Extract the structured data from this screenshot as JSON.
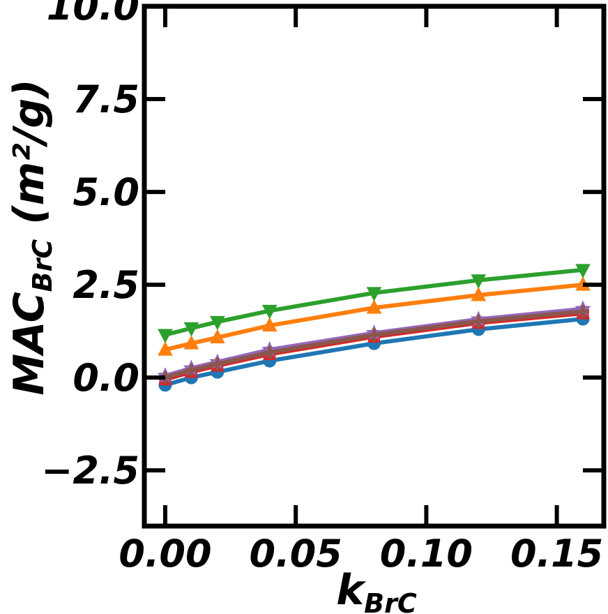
{
  "chart_data": {
    "type": "line",
    "xlabel_main": "k",
    "xlabel_sub": "BrC",
    "ylabel_main": "MAC",
    "ylabel_sub": "BrC",
    "ylabel_unit": " (m²/g)",
    "xlim": [
      -0.008,
      0.168
    ],
    "ylim": [
      -4.0,
      10.0
    ],
    "xticks": [
      0.0,
      0.05,
      0.1,
      0.15
    ],
    "xtick_labels": [
      "0.00",
      "0.05",
      "0.10",
      "0.15"
    ],
    "yticks": [
      -2.5,
      0.0,
      2.5,
      5.0,
      7.5,
      10.0
    ],
    "ytick_labels": [
      "−2.5",
      "0.0",
      "2.5",
      "5.0",
      "7.5",
      "10.0"
    ],
    "x": [
      0.0,
      0.01,
      0.02,
      0.04,
      0.08,
      0.12,
      0.16
    ],
    "series": [
      {
        "color": "#1f77b4",
        "marker": "circle",
        "values": [
          -0.2,
          0.0,
          0.15,
          0.45,
          0.92,
          1.3,
          1.58
        ]
      },
      {
        "color": "#ff7f0e",
        "marker": "triangle-up",
        "values": [
          0.75,
          0.92,
          1.08,
          1.4,
          1.88,
          2.22,
          2.5
        ]
      },
      {
        "color": "#2ca02c",
        "marker": "triangle-down",
        "values": [
          1.15,
          1.33,
          1.5,
          1.8,
          2.28,
          2.62,
          2.9
        ]
      },
      {
        "color": "#d62728",
        "marker": "square",
        "values": [
          -0.05,
          0.15,
          0.32,
          0.63,
          1.1,
          1.47,
          1.73
        ]
      },
      {
        "color": "#9467bd",
        "marker": "star",
        "values": [
          0.05,
          0.25,
          0.42,
          0.75,
          1.2,
          1.57,
          1.85
        ]
      },
      {
        "color": "#8c564b",
        "marker": "plus",
        "values": [
          0.0,
          0.2,
          0.37,
          0.68,
          1.15,
          1.52,
          1.78
        ]
      }
    ],
    "grid": false,
    "legend": "none"
  }
}
